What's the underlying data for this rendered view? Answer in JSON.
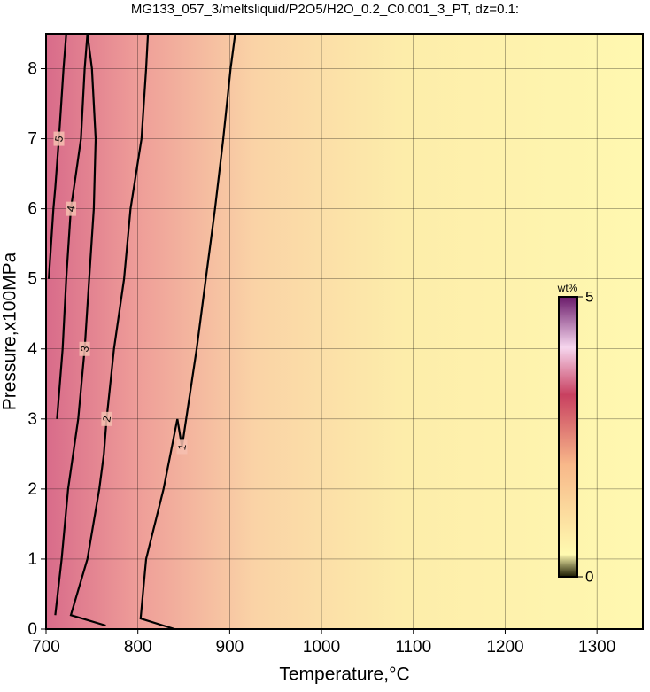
{
  "chart_data": {
    "type": "contour",
    "title": "MG133_057_3/meltsliquid/P2O5/H2O_0.2_C0.001_3_PT, dz=0.1:",
    "x_label": "Temperature,°C",
    "y_label": "Pressure,x100MPa",
    "xlim": [
      700,
      1350
    ],
    "ylim": [
      0,
      8.5
    ],
    "xticks": [
      700,
      800,
      900,
      1000,
      1100,
      1200,
      1300
    ],
    "yticks": [
      0,
      1,
      2,
      3,
      4,
      5,
      6,
      7,
      8
    ],
    "grid": true,
    "colorbar": {
      "label": "wt%",
      "ticks": [
        0,
        5
      ]
    },
    "series": [
      {
        "level": 1,
        "color": "#000000",
        "x": [
          840,
          803,
          809,
          828,
          843,
          848,
          864,
          874,
          884,
          893,
          901,
          906
        ],
        "y": [
          0,
          0.15,
          1,
          2,
          3,
          2.6,
          4,
          5,
          6,
          7,
          8,
          8.5
        ]
      },
      {
        "level": 2,
        "color": "#000000",
        "x": [
          765,
          727,
          745,
          758,
          763,
          766,
          774,
          785,
          792,
          804,
          809,
          811
        ],
        "y": [
          0.05,
          0.2,
          1,
          2,
          2.5,
          3,
          4,
          5,
          6,
          7,
          8,
          8.5
        ]
      },
      {
        "level": 3,
        "color": "#000000",
        "x": [
          710,
          717,
          724,
          735,
          742,
          747,
          752,
          754,
          750,
          745
        ],
        "y": [
          0.2,
          1,
          2,
          3,
          4,
          5,
          6,
          7,
          8,
          8.5
        ]
      },
      {
        "level": 4,
        "color": "#000000",
        "x": [
          712,
          718,
          722,
          727,
          732,
          738,
          742,
          745
        ],
        "y": [
          3,
          4,
          5,
          6,
          6.45,
          7,
          8,
          8.5
        ]
      },
      {
        "level": 5,
        "color": "#000000",
        "x": [
          703,
          708,
          710,
          714,
          716,
          719,
          722
        ],
        "y": [
          5,
          6,
          6.3,
          7,
          7.4,
          8,
          8.5
        ]
      }
    ]
  }
}
